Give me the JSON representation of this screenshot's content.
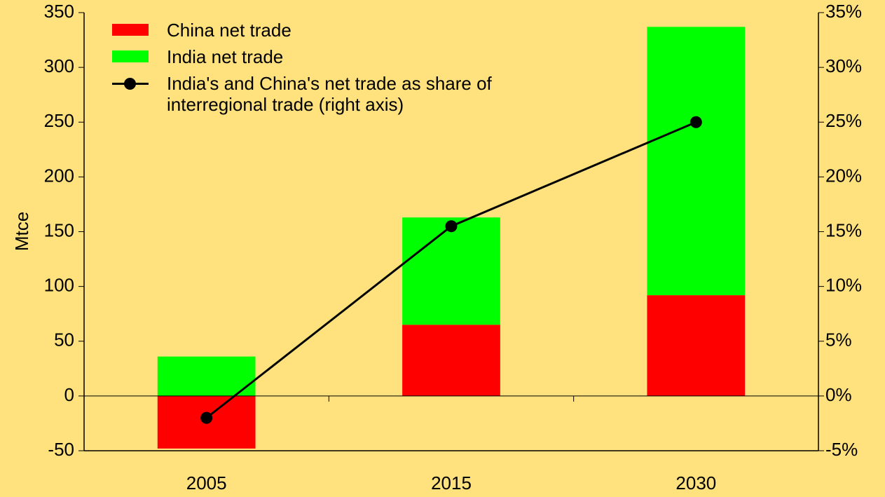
{
  "chart_data": {
    "type": "bar",
    "stacked": true,
    "categories": [
      "2005",
      "2015",
      "2030"
    ],
    "ylabel": "Mtce",
    "ylim": [
      -50,
      350
    ],
    "yticks": [
      -50,
      0,
      50,
      100,
      150,
      200,
      250,
      300,
      350
    ],
    "y2lim": [
      -5,
      35
    ],
    "y2ticks": [
      {
        "value": -5,
        "label": "-5%"
      },
      {
        "value": 0,
        "label": "0%"
      },
      {
        "value": 5,
        "label": "5%"
      },
      {
        "value": 10,
        "label": "10%"
      },
      {
        "value": 15,
        "label": "15%"
      },
      {
        "value": 20,
        "label": "20%"
      },
      {
        "value": 25,
        "label": "25%"
      },
      {
        "value": 30,
        "label": "30%"
      },
      {
        "value": 35,
        "label": "35%"
      }
    ],
    "legend": "upper left",
    "series": [
      {
        "name": "China net trade",
        "type": "bar",
        "color": "#ff0000",
        "values": [
          -48,
          65,
          92
        ]
      },
      {
        "name": "India net trade",
        "type": "bar",
        "color": "#00ff00",
        "values": [
          36,
          98,
          245
        ]
      },
      {
        "name": "India's and China's net trade as share of interregional trade (right axis)",
        "type": "line",
        "axis": "y2",
        "color": "#000000",
        "values": [
          -2,
          15.5,
          25
        ]
      }
    ]
  }
}
